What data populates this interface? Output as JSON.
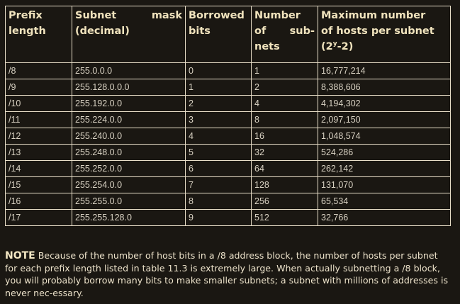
{
  "table": {
    "headers": [
      {
        "line1": "Prefix",
        "line2": "length"
      },
      {
        "line1a": "Subnet",
        "line1b": "mask",
        "line2": "(decimal)"
      },
      {
        "line1": "Borrowed",
        "line2": "bits"
      },
      {
        "line1": "Number",
        "line2a": "of",
        "line2b": "sub-",
        "line3": "nets"
      },
      {
        "line1": "Maximum number",
        "line2": "of hosts per subnet",
        "line3_pre": "(2",
        "line3_sup": "y",
        "line3_post": "-2)"
      }
    ],
    "rows": [
      {
        "prefix": "/8",
        "mask": "255.0.0.0",
        "bits": "0",
        "subnets": "1",
        "hosts": "16,777,214"
      },
      {
        "prefix": "/9",
        "mask": "255.128.0.0.0",
        "bits": "1",
        "subnets": "2",
        "hosts": "8,388,606"
      },
      {
        "prefix": "/10",
        "mask": "255.192.0.0",
        "bits": "2",
        "subnets": "4",
        "hosts": "4,194,302"
      },
      {
        "prefix": "/11",
        "mask": "255.224.0.0",
        "bits": "3",
        "subnets": "8",
        "hosts": "2,097,150"
      },
      {
        "prefix": "/12",
        "mask": "255.240.0.0",
        "bits": "4",
        "subnets": "16",
        "hosts": "1,048,574"
      },
      {
        "prefix": "/13",
        "mask": "255.248.0.0",
        "bits": "5",
        "subnets": "32",
        "hosts": "524,286"
      },
      {
        "prefix": "/14",
        "mask": "255.252.0.0",
        "bits": "6",
        "subnets": "64",
        "hosts": "262,142"
      },
      {
        "prefix": "/15",
        "mask": "255.254.0.0",
        "bits": "7",
        "subnets": "128",
        "hosts": "131,070"
      },
      {
        "prefix": "/16",
        "mask": "255.255.0.0",
        "bits": "8",
        "subnets": "256",
        "hosts": "65,534"
      },
      {
        "prefix": "/17",
        "mask": "255.255.128.0",
        "bits": "9",
        "subnets": "512",
        "hosts": "32,766"
      }
    ]
  },
  "note": {
    "label": "NOTE",
    "text": "Because of the number of host bits in a /8 address block, the number of hosts per subnet for each prefix length listed in table 11.3 is extremely large. When actually subnetting a /8 block, you will probably borrow many bits to make smaller subnets; a subnet with millions of addresses is never nec-essary."
  }
}
